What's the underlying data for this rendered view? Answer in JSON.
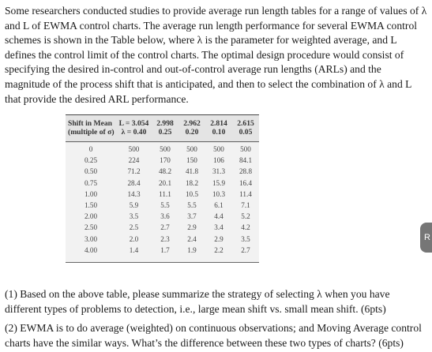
{
  "intro_text": "Some researchers conducted studies to provide average run length tables for a range of values of λ and L of EWMA control charts. The average run length performance for several EWMA control schemes is shown in the Table below, where λ is the parameter for weighted average, and L defines the control limit of the control charts. The optimal design procedure would consist of specifying the desired in-control and out-of-control average run lengths (ARLs) and the magnitude of the process shift that is anticipated, and then to select the combination of λ and L that provide the desired ARL performance.",
  "table": {
    "header_line1": [
      "Shift in Mean",
      "L = 3.054",
      "2.998",
      "2.962",
      "2.814",
      "2.615"
    ],
    "header_line2": [
      "(multiple of σ)",
      "λ = 0.40",
      "0.25",
      "0.20",
      "0.10",
      "0.05"
    ],
    "rows": [
      [
        "0",
        "500",
        "500",
        "500",
        "500",
        "500"
      ],
      [
        "0.25",
        "224",
        "170",
        "150",
        "106",
        "84.1"
      ],
      [
        "0.50",
        "71.2",
        "48.2",
        "41.8",
        "31.3",
        "28.8"
      ],
      [
        "0.75",
        "28.4",
        "20.1",
        "18.2",
        "15.9",
        "16.4"
      ],
      [
        "1.00",
        "14.3",
        "11.1",
        "10.5",
        "10.3",
        "11.4"
      ],
      [
        "1.50",
        "5.9",
        "5.5",
        "5.5",
        "6.1",
        "7.1"
      ],
      [
        "2.00",
        "3.5",
        "3.6",
        "3.7",
        "4.4",
        "5.2"
      ],
      [
        "2.50",
        "2.5",
        "2.7",
        "2.9",
        "3.4",
        "4.2"
      ],
      [
        "3.00",
        "2.0",
        "2.3",
        "2.4",
        "2.9",
        "3.5"
      ],
      [
        "4.00",
        "1.4",
        "1.7",
        "1.9",
        "2.2",
        "2.7"
      ]
    ]
  },
  "question_1": "(1) Based on the above table, please summarize the strategy of selecting λ when you have different types of problems to detection, i.e., large mean shift vs. small mean shift. (6pts)",
  "question_2": "(2) EWMA is to do average (weighted) on continuous observations; and Moving Average control charts have the similar ways. What’s the difference between these two types of charts? (6pts)",
  "side_tab_label": "R"
}
